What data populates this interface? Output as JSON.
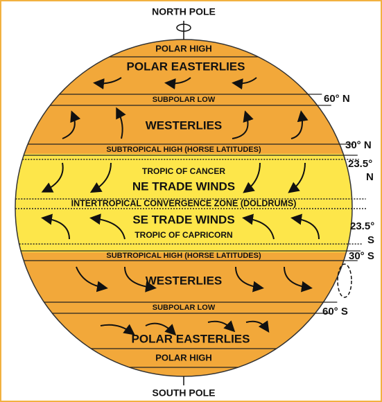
{
  "title_top": "NORTH POLE",
  "title_bottom": "SOUTH POLE",
  "bands": {
    "polar_high_n": "POLAR HIGH",
    "polar_easterlies_n": "POLAR EASTERLIES",
    "subpolar_low_n": "SUBPOLAR LOW",
    "westerlies_n": "WESTERLIES",
    "subtropical_high_n": "SUBTROPICAL HIGH (HORSE LATITUDES)",
    "tropic_cancer": "TROPIC OF CANCER",
    "ne_trade": "NE TRADE WINDS",
    "itcz": "INTERTROPICAL CONVERGENCE ZONE (DOLDRUMS)",
    "se_trade": "SE TRADE WINDS",
    "tropic_capricorn": "TROPIC OF CAPRICORN",
    "subtropical_high_s": "SUBTROPICAL HIGH (HORSE LATITUDES)",
    "westerlies_s": "WESTERLIES",
    "subpolar_low_s": "SUBPOLAR LOW",
    "polar_easterlies_s": "POLAR EASTERLIES",
    "polar_high_s": "POLAR HIGH"
  },
  "latitudes": {
    "n60": "60° N",
    "n30": "30° N",
    "n23": [
      "23.5°",
      "N"
    ],
    "s23": [
      "23.5°",
      "S"
    ],
    "s30": "30° S",
    "s60": "60° S"
  }
}
